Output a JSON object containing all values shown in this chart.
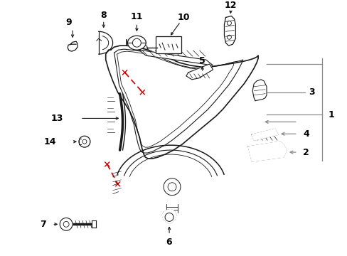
{
  "bg_color": "#ffffff",
  "fig_width": 4.89,
  "fig_height": 3.6,
  "dpi": 100,
  "lc": "#1a1a1a",
  "rc": "#cc0000",
  "gc": "#888888"
}
